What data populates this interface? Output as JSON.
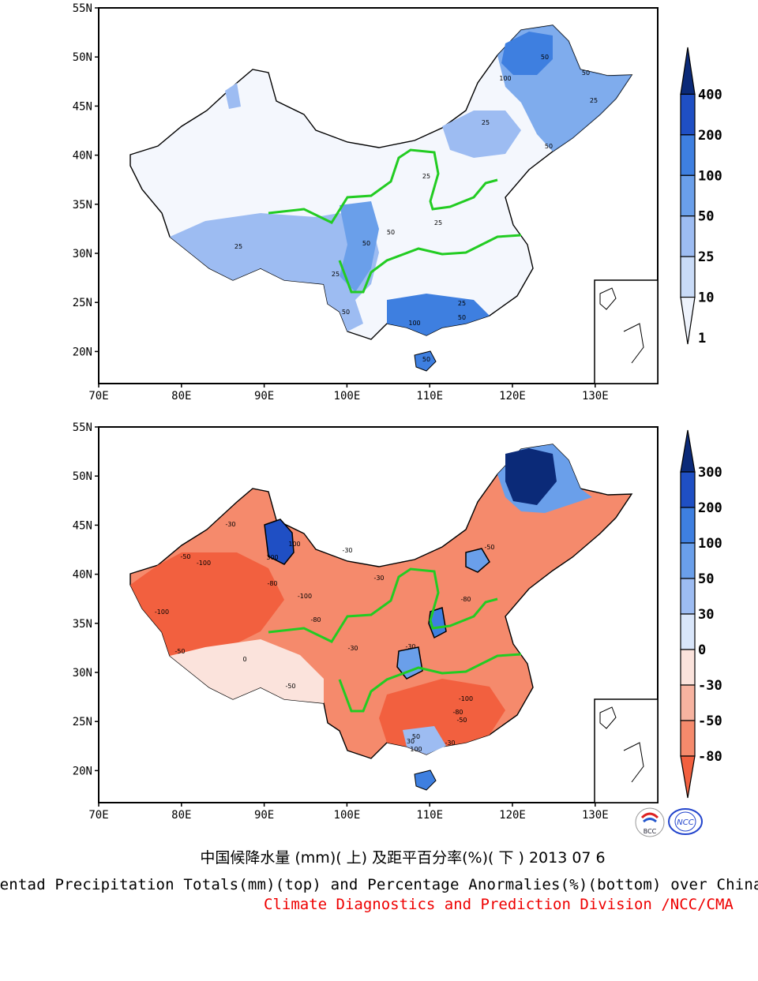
{
  "panels": [
    {
      "id": "top",
      "name": "pentad-precipitation-totals",
      "lat_labels": [
        "55N",
        "50N",
        "45N",
        "40N",
        "35N",
        "30N",
        "25N",
        "20N"
      ],
      "lon_labels": [
        "70E",
        "80E",
        "90E",
        "100E",
        "110E",
        "120E",
        "130E"
      ],
      "colorbar": {
        "labels": [
          "400",
          "200",
          "100",
          "50",
          "25",
          "10",
          "1"
        ],
        "colors": [
          "#0b2a78",
          "#1f4fc4",
          "#3e7fe0",
          "#6a9fea",
          "#9dbcf2",
          "#c9dbf7",
          "#eef3fc"
        ]
      },
      "contour_labels": [
        "50",
        "100",
        "50",
        "25",
        "25",
        "25",
        "25",
        "50",
        "50",
        "25",
        "50",
        "50",
        "100",
        "50",
        "25",
        "25",
        "50"
      ]
    },
    {
      "id": "bottom",
      "name": "precipitation-percentage-anomalies",
      "lat_labels": [
        "55N",
        "50N",
        "45N",
        "40N",
        "35N",
        "30N",
        "25N",
        "20N"
      ],
      "lon_labels": [
        "70E",
        "80E",
        "90E",
        "100E",
        "110E",
        "120E",
        "130E"
      ],
      "colorbar": {
        "labels": [
          "300",
          "200",
          "100",
          "50",
          "30",
          "0",
          "-30",
          "-50",
          "-80"
        ],
        "colors": [
          "#0b2a78",
          "#1f4fc4",
          "#3e7fe0",
          "#6a9fea",
          "#9dbcf2",
          "#d9e6fa",
          "#fbe3dc",
          "#f7b3a0",
          "#f58a6c",
          "#f2603f"
        ]
      },
      "contour_labels": [
        "300",
        "100",
        "-30",
        "-50",
        "-100",
        "-80",
        "-30",
        "-100",
        "-50",
        "-80",
        "-100",
        "-50",
        "-30",
        "-30",
        "-80",
        "-50",
        "0",
        "-30",
        "-100",
        "-80",
        "-50",
        "-30",
        "50",
        "30",
        "100"
      ]
    }
  ],
  "captions": {
    "chinese": "中国候降水量 (mm)( 上) 及距平百分率(%)( 下 ) 2013 07 6",
    "english": "Pentad Precipitation Totals(mm)(top) and Percentage Anormalies(%)(bottom) over China",
    "division": "Climate Diagnostics and Prediction Division /NCC/CMA"
  },
  "logos": [
    {
      "name": "bcc-logo",
      "text": "BCC"
    },
    {
      "name": "ncc-logo",
      "text": "NCC"
    }
  ]
}
